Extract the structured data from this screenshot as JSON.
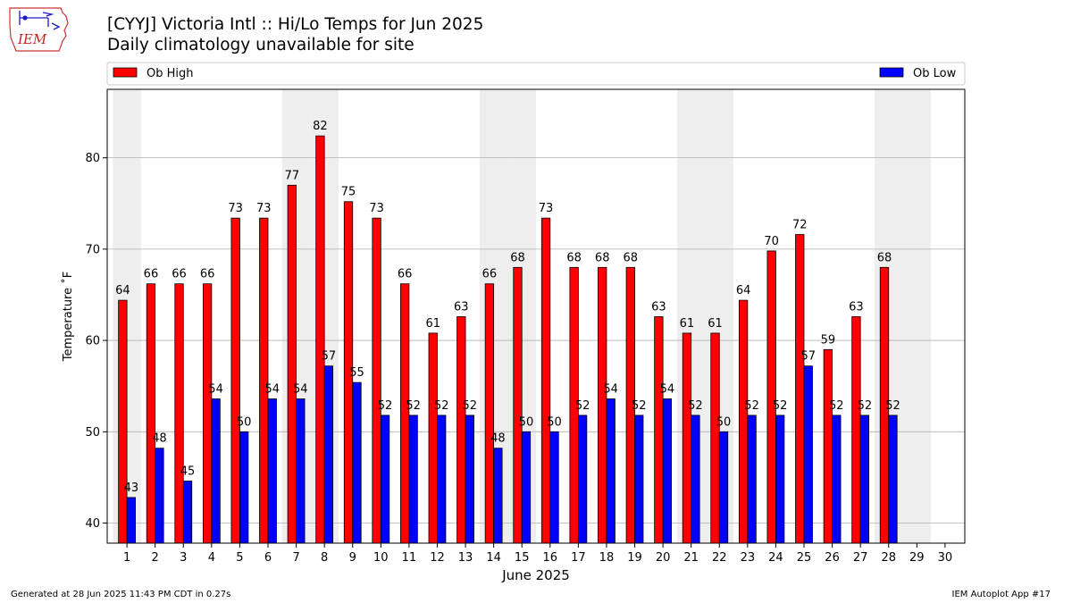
{
  "title": "[CYYJ] Victoria Intl :: Hi/Lo Temps for Jun 2025",
  "subtitle": "Daily climatology unavailable for site",
  "logo_text": "IEM",
  "footer_left": "Generated at 28 Jun 2025 11:43 PM CDT in 0.27s",
  "footer_right": "IEM Autoplot App #17",
  "colors": {
    "high": "#ff0000",
    "low": "#0000ff",
    "weekend": "#eeeeee",
    "grid": "#b0b0b0"
  },
  "chart_data": {
    "type": "bar",
    "xlabel": "June 2025",
    "ylabel": "Temperature ˚F",
    "ylim": [
      37.8,
      87.5
    ],
    "yticks": [
      40,
      50,
      60,
      70,
      80
    ],
    "grid": "horizontal",
    "legend_placement": "top",
    "categories": [
      "1",
      "2",
      "3",
      "4",
      "5",
      "6",
      "7",
      "8",
      "9",
      "10",
      "11",
      "12",
      "13",
      "14",
      "15",
      "16",
      "17",
      "18",
      "19",
      "20",
      "21",
      "22",
      "23",
      "24",
      "25",
      "26",
      "27",
      "28",
      "29",
      "30"
    ],
    "weekend_days": [
      1,
      7,
      8,
      14,
      15,
      21,
      22,
      28,
      29
    ],
    "series": [
      {
        "name": "Ob High",
        "values": [
          64.4,
          66.2,
          66.2,
          66.2,
          73.4,
          73.4,
          77.0,
          82.4,
          75.2,
          73.4,
          66.2,
          60.8,
          62.6,
          66.2,
          68.0,
          73.4,
          68.0,
          68.0,
          68.0,
          62.6,
          60.8,
          60.8,
          64.4,
          69.8,
          71.6,
          59.0,
          62.6,
          68.0,
          null,
          null
        ],
        "labels": [
          "64",
          "66",
          "66",
          "66",
          "73",
          "73",
          "77",
          "82",
          "75",
          "73",
          "66",
          "61",
          "63",
          "66",
          "68",
          "73",
          "68",
          "68",
          "68",
          "63",
          "61",
          "61",
          "64",
          "70",
          "72",
          "59",
          "63",
          "68",
          "",
          ""
        ]
      },
      {
        "name": "Ob Low",
        "values": [
          42.8,
          48.2,
          44.6,
          53.6,
          50.0,
          53.6,
          53.6,
          57.2,
          55.4,
          51.8,
          51.8,
          51.8,
          51.8,
          48.2,
          50.0,
          50.0,
          51.8,
          53.6,
          51.8,
          53.6,
          51.8,
          50.0,
          51.8,
          51.8,
          57.2,
          51.8,
          51.8,
          51.8,
          null,
          null
        ],
        "labels": [
          "43",
          "48",
          "45",
          "54",
          "50",
          "54",
          "54",
          "57",
          "55",
          "52",
          "52",
          "52",
          "52",
          "48",
          "50",
          "50",
          "52",
          "54",
          "52",
          "54",
          "52",
          "50",
          "52",
          "52",
          "57",
          "52",
          "52",
          "52",
          "",
          ""
        ]
      }
    ]
  }
}
